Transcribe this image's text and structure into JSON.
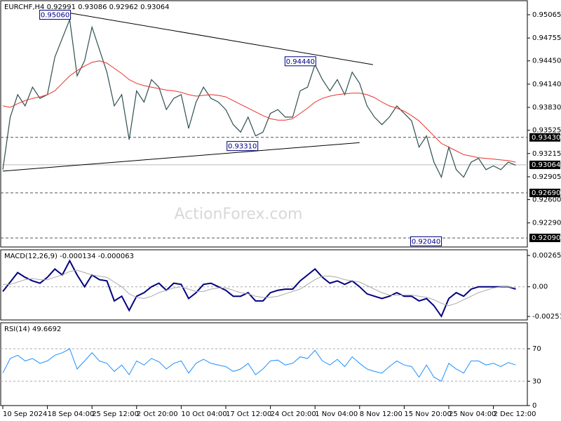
{
  "chart_data": [
    {
      "type": "line",
      "title": "EURCHF,H4  0.92991 0.93086 0.92962 0.93064",
      "watermark": "ActionForex.com",
      "categories": [
        "10 Sep 2024",
        null,
        null,
        null,
        null,
        null,
        "18 Sep 04:00",
        null,
        null,
        null,
        null,
        null,
        "25 Sep 12:00",
        null,
        null,
        null,
        null,
        null,
        "2 Oct 20:00",
        null,
        null,
        null,
        null,
        null,
        "10 Oct 04:00",
        null,
        null,
        null,
        null,
        null,
        "17 Oct 12:00",
        null,
        null,
        null,
        null,
        null,
        "24 Oct 20:00",
        null,
        null,
        null,
        null,
        null,
        "1 Nov 04:00",
        null,
        null,
        null,
        null,
        null,
        "8 Nov 12:00",
        null,
        null,
        null,
        null,
        null,
        "15 Nov 20:00",
        null,
        null,
        null,
        null,
        null,
        "25 Nov 04:00",
        null,
        null,
        null,
        null,
        null,
        "2 Dec 12:00",
        null,
        null,
        null
      ],
      "series": [
        {
          "color": "#2f4f4f",
          "width": 1.2,
          "values": [
            0.93,
            0.937,
            0.94,
            0.9385,
            0.941,
            0.9395,
            0.94,
            0.945,
            0.9475,
            0.95,
            0.9425,
            0.9445,
            0.949,
            0.946,
            0.943,
            0.9385,
            0.94,
            0.934,
            0.9405,
            0.939,
            0.942,
            0.941,
            0.938,
            0.9395,
            0.94,
            0.9355,
            0.939,
            0.941,
            0.9395,
            0.939,
            0.938,
            0.936,
            0.935,
            0.937,
            0.9345,
            0.935,
            0.9375,
            0.938,
            0.937,
            0.937,
            0.9405,
            0.941,
            0.944,
            0.942,
            0.9405,
            0.942,
            0.94,
            0.943,
            0.9415,
            0.9385,
            0.937,
            0.936,
            0.937,
            0.9385,
            0.9375,
            0.9365,
            0.933,
            0.9345,
            0.931,
            0.929,
            0.933,
            0.93,
            0.929,
            0.931,
            0.9315,
            0.93,
            0.9305,
            0.93,
            0.931,
            0.9306
          ]
        },
        {
          "color": "#e8312b",
          "width": 1,
          "values": [
            0.9385,
            0.9383,
            0.9388,
            0.9392,
            0.9395,
            0.9397,
            0.94,
            0.9405,
            0.9415,
            0.9425,
            0.9432,
            0.9438,
            0.9443,
            0.9445,
            0.9442,
            0.9435,
            0.9428,
            0.942,
            0.9415,
            0.9412,
            0.941,
            0.9408,
            0.9406,
            0.9405,
            0.9403,
            0.94,
            0.9398,
            0.9399,
            0.94,
            0.9399,
            0.9397,
            0.9392,
            0.9387,
            0.9382,
            0.9377,
            0.9372,
            0.9368,
            0.9366,
            0.9366,
            0.9368,
            0.9375,
            0.9382,
            0.939,
            0.9395,
            0.9398,
            0.94,
            0.9401,
            0.9402,
            0.9402,
            0.94,
            0.9396,
            0.939,
            0.9385,
            0.9382,
            0.9378,
            0.9372,
            0.9365,
            0.9355,
            0.9345,
            0.9335,
            0.933,
            0.9325,
            0.932,
            0.9318,
            0.9316,
            0.9315,
            0.9314,
            0.9313,
            0.9312,
            0.931
          ]
        }
      ],
      "ylim": [
        0.91969,
        0.95252
      ],
      "yticks": [
        0.95065,
        0.94755,
        {
          "value": 0.9445,
          "label": "0.94450"
        },
        {
          "value": 0.9414,
          "label": "0.94140"
        },
        {
          "value": 0.9383,
          "label": "0.93830"
        },
        0.93525,
        0.93215,
        0.92905,
        {
          "value": 0.926,
          "label": "0.92600"
        },
        {
          "value": 0.9229,
          "label": "0.92290"
        }
      ],
      "levels": [
        {
          "value": 0.9343,
          "label": "0.93430",
          "style": "dashed"
        },
        {
          "value": 0.93064,
          "label": "0.93064",
          "style": "solid"
        },
        {
          "value": 0.9269,
          "label": "0.92690",
          "style": "dashed"
        },
        {
          "value": 0.9209,
          "label": "0.92090",
          "style": "dashed"
        }
      ],
      "trendlines": [
        {
          "from": [
            0,
            0.9298
          ],
          "to": [
            48,
            0.9336
          ]
        },
        {
          "from": [
            8.9,
            0.9509
          ],
          "to": [
            49.8,
            0.944
          ]
        }
      ],
      "annotations": [
        {
          "label": "0.95060",
          "x": 9.3,
          "y": 0.9506
        },
        {
          "label": "0.94440",
          "x": 42.3,
          "y": 0.9444
        },
        {
          "label": "0.93310",
          "x": 34.5,
          "y": 0.9331
        },
        {
          "label": "0.92040",
          "x": 59.2,
          "y": 0.9204
        }
      ]
    },
    {
      "type": "line",
      "title": "MACD(12,26,9) -0.000134 -0.000063",
      "series": [
        {
          "color": "#000080",
          "width": 2,
          "values": [
            -0.0004,
            0.0004,
            0.0012,
            0.0008,
            0.0005,
            0.0003,
            0.0008,
            0.0015,
            0.001,
            0.0022,
            0.001,
            0.0,
            0.001,
            0.0006,
            0.0005,
            -0.0012,
            -0.0008,
            -0.002,
            -0.0008,
            -0.0005,
            0.0,
            0.0003,
            -0.0003,
            0.0003,
            0.0002,
            -0.001,
            -0.0005,
            0.0002,
            0.0003,
            0.0,
            -0.0003,
            -0.0008,
            -0.0008,
            -0.0005,
            -0.0012,
            -0.0012,
            -0.0005,
            -0.0003,
            -0.0002,
            -0.0002,
            0.0005,
            0.001,
            0.0015,
            0.0008,
            0.0003,
            0.0005,
            0.0002,
            0.0005,
            0.0,
            -0.0006,
            -0.0008,
            -0.001,
            -0.0008,
            -0.0005,
            -0.0008,
            -0.0008,
            -0.0012,
            -0.001,
            -0.0016,
            -0.0025,
            -0.001,
            -0.0005,
            -0.0008,
            -0.0002,
            0.0,
            0.0,
            0.0,
            0.0,
            0.0,
            -0.0002
          ]
        },
        {
          "color": "#a9a9a9",
          "width": 1,
          "values": [
            0.0002,
            0.0002,
            0.0004,
            0.0006,
            0.0007,
            0.0006,
            0.0006,
            0.0008,
            0.001,
            0.0013,
            0.0014,
            0.0012,
            0.001,
            0.0009,
            0.0008,
            0.0004,
            0.0,
            -0.0006,
            -0.0009,
            -0.001,
            -0.0008,
            -0.0005,
            -0.0003,
            -0.0001,
            0.0,
            -0.0002,
            -0.0004,
            -0.0004,
            -0.0002,
            -0.0001,
            -0.0001,
            -0.0003,
            -0.0005,
            -0.0006,
            -0.0008,
            -0.0009,
            -0.0009,
            -0.0008,
            -0.0006,
            -0.0004,
            -0.0002,
            0.0002,
            0.0006,
            0.0009,
            0.0009,
            0.0008,
            0.0006,
            0.0005,
            0.0004,
            0.0001,
            -0.0002,
            -0.0005,
            -0.0007,
            -0.0007,
            -0.0007,
            -0.0007,
            -0.0008,
            -0.0009,
            -0.0011,
            -0.0014,
            -0.0016,
            -0.0014,
            -0.0011,
            -0.0008,
            -0.0005,
            -0.0003,
            -0.0001,
            0.0,
            0.0,
            -0.0001
          ]
        }
      ],
      "ylim": [
        -0.00281,
        0.00313
      ],
      "yticks": [
        0.00265,
        {
          "value": 0,
          "label": "0.00"
        },
        -0.002511
      ],
      "zero_line": true
    },
    {
      "type": "line",
      "title": "RSI(14) 49.6692",
      "series": [
        {
          "color": "#1e90ff",
          "width": 1,
          "values": [
            40,
            58,
            62,
            55,
            58,
            52,
            55,
            62,
            65,
            70,
            45,
            55,
            65,
            55,
            52,
            42,
            50,
            38,
            55,
            50,
            58,
            54,
            45,
            52,
            55,
            40,
            52,
            57,
            52,
            50,
            48,
            42,
            45,
            52,
            38,
            45,
            55,
            56,
            50,
            52,
            60,
            58,
            68,
            55,
            50,
            57,
            48,
            60,
            52,
            45,
            42,
            40,
            48,
            55,
            50,
            48,
            35,
            50,
            35,
            30,
            52,
            45,
            40,
            55,
            55,
            50,
            52,
            48,
            53,
            50
          ]
        }
      ],
      "ylim": [
        0,
        102
      ],
      "yticks": [
        70,
        30,
        0
      ],
      "dashed_ticks": [
        70,
        30
      ]
    }
  ]
}
